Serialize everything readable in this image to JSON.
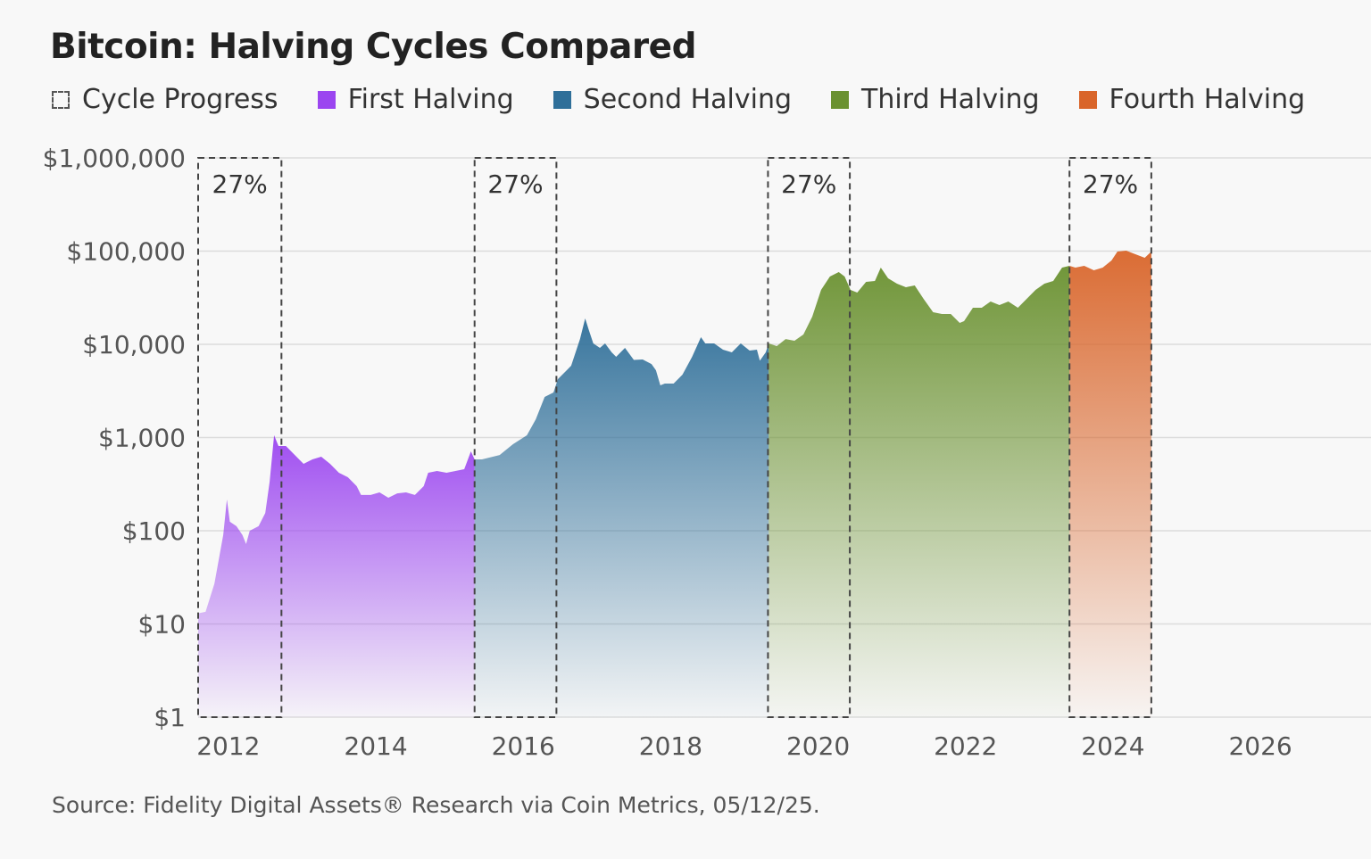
{
  "chart_data": {
    "type": "area",
    "title": "Bitcoin: Halving Cycles Compared",
    "source": "Source: Fidelity Digital Assets® Research via Coin Metrics, 05/12/25.",
    "y_scale": "log",
    "ylim": [
      1,
      1000000
    ],
    "xlim": [
      2011.59,
      2027.5
    ],
    "y_ticks": [
      1,
      10,
      100,
      1000,
      10000,
      100000,
      1000000
    ],
    "y_tick_labels": [
      "$1",
      "$10",
      "$100",
      "$1,000",
      "$10,000",
      "$100,000",
      "$1,000,000"
    ],
    "x_ticks": [
      2012,
      2014,
      2016,
      2018,
      2020,
      2022,
      2024,
      2026
    ],
    "x_tick_labels": [
      "2012",
      "2014",
      "2016",
      "2018",
      "2020",
      "2022",
      "2024",
      "2026"
    ],
    "grid": "horizontal",
    "legend_position": "top-left",
    "legend": [
      {
        "label": "Cycle Progress",
        "style": "dashed-box",
        "color": "#555555"
      },
      {
        "label": "First Halving",
        "color": "#9b45f0"
      },
      {
        "label": "Second Halving",
        "color": "#2f6f99"
      },
      {
        "label": "Third Halving",
        "color": "#6a9130"
      },
      {
        "label": "Fourth Halving",
        "color": "#d9652a"
      }
    ],
    "cycle_progress_windows": [
      {
        "start": 2011.59,
        "end": 2012.72,
        "label": "27%"
      },
      {
        "start": 2015.34,
        "end": 2016.45,
        "label": "27%"
      },
      {
        "start": 2019.32,
        "end": 2020.43,
        "label": "27%"
      },
      {
        "start": 2023.41,
        "end": 2024.52,
        "label": "27%"
      }
    ],
    "series": [
      {
        "name": "First Halving",
        "color": "#9b45f0",
        "points": [
          [
            2011.59,
            13
          ],
          [
            2011.69,
            13.5
          ],
          [
            2011.81,
            27
          ],
          [
            2011.93,
            90
          ],
          [
            2011.98,
            216
          ],
          [
            2012.02,
            125
          ],
          [
            2012.11,
            112
          ],
          [
            2012.19,
            90
          ],
          [
            2012.24,
            72
          ],
          [
            2012.29,
            100
          ],
          [
            2012.41,
            112
          ],
          [
            2012.5,
            155
          ],
          [
            2012.56,
            336
          ],
          [
            2012.62,
            1057
          ],
          [
            2012.68,
            811
          ],
          [
            2012.78,
            811
          ],
          [
            2012.96,
            583
          ],
          [
            2013.02,
            522
          ],
          [
            2013.14,
            583
          ],
          [
            2013.26,
            622
          ],
          [
            2013.38,
            522
          ],
          [
            2013.5,
            419
          ],
          [
            2013.62,
            375
          ],
          [
            2013.74,
            301
          ],
          [
            2013.8,
            242
          ],
          [
            2013.93,
            242
          ],
          [
            2014.05,
            258
          ],
          [
            2014.17,
            226
          ],
          [
            2014.29,
            252
          ],
          [
            2014.41,
            258
          ],
          [
            2014.53,
            242
          ],
          [
            2014.65,
            301
          ],
          [
            2014.71,
            419
          ],
          [
            2014.83,
            438
          ],
          [
            2014.96,
            419
          ],
          [
            2015.08,
            438
          ],
          [
            2015.2,
            457
          ],
          [
            2015.29,
            711
          ],
          [
            2015.34,
            583
          ]
        ]
      },
      {
        "name": "Second Halving",
        "color": "#2f6f99",
        "points": [
          [
            2015.34,
            583
          ],
          [
            2015.44,
            583
          ],
          [
            2015.68,
            650
          ],
          [
            2015.86,
            848
          ],
          [
            2016.05,
            1057
          ],
          [
            2016.17,
            1571
          ],
          [
            2016.29,
            2725
          ],
          [
            2016.41,
            3043
          ],
          [
            2016.47,
            4236
          ],
          [
            2016.53,
            4730
          ],
          [
            2016.65,
            5890
          ],
          [
            2016.77,
            11400
          ],
          [
            2016.84,
            18960
          ],
          [
            2016.89,
            14220
          ],
          [
            2016.95,
            10230
          ],
          [
            2017.04,
            9160
          ],
          [
            2017.11,
            10230
          ],
          [
            2017.2,
            8200
          ],
          [
            2017.26,
            7350
          ],
          [
            2017.38,
            9160
          ],
          [
            2017.5,
            6800
          ],
          [
            2017.62,
            6880
          ],
          [
            2017.74,
            6150
          ],
          [
            2017.8,
            5270
          ],
          [
            2017.86,
            3630
          ],
          [
            2017.92,
            3790
          ],
          [
            2018.04,
            3790
          ],
          [
            2018.16,
            4730
          ],
          [
            2018.29,
            7350
          ],
          [
            2018.41,
            11930
          ],
          [
            2018.47,
            10230
          ],
          [
            2018.59,
            10230
          ],
          [
            2018.71,
            8770
          ],
          [
            2018.83,
            8200
          ],
          [
            2018.95,
            10230
          ],
          [
            2019.07,
            8570
          ],
          [
            2019.17,
            8770
          ],
          [
            2019.21,
            6660
          ],
          [
            2019.29,
            8200
          ],
          [
            2019.33,
            10230
          ]
        ]
      },
      {
        "name": "Third Halving",
        "color": "#6a9130",
        "points": [
          [
            2019.33,
            10230
          ],
          [
            2019.44,
            9570
          ],
          [
            2019.56,
            11400
          ],
          [
            2019.68,
            10920
          ],
          [
            2019.8,
            12740
          ],
          [
            2019.92,
            19800
          ],
          [
            2020.04,
            38370
          ],
          [
            2020.16,
            53350
          ],
          [
            2020.28,
            59570
          ],
          [
            2020.36,
            53350
          ],
          [
            2020.44,
            38370
          ],
          [
            2020.53,
            35890
          ],
          [
            2020.65,
            46770
          ],
          [
            2020.77,
            47780
          ],
          [
            2020.85,
            66530
          ],
          [
            2020.95,
            51070
          ],
          [
            2021.07,
            44760
          ],
          [
            2021.19,
            40930
          ],
          [
            2021.31,
            42850
          ],
          [
            2021.43,
            30770
          ],
          [
            2021.56,
            22090
          ],
          [
            2021.68,
            21140
          ],
          [
            2021.8,
            21140
          ],
          [
            2021.92,
            16980
          ],
          [
            2021.98,
            17740
          ],
          [
            2022.1,
            24670
          ],
          [
            2022.22,
            24670
          ],
          [
            2022.34,
            28780
          ],
          [
            2022.46,
            26370
          ],
          [
            2022.58,
            28780
          ],
          [
            2022.71,
            24670
          ],
          [
            2022.83,
            30770
          ],
          [
            2022.95,
            38370
          ],
          [
            2023.07,
            44760
          ],
          [
            2023.19,
            47780
          ],
          [
            2023.31,
            66530
          ],
          [
            2023.41,
            69500
          ]
        ]
      },
      {
        "name": "Fourth Halving",
        "color": "#d9652a",
        "points": [
          [
            2023.41,
            69500
          ],
          [
            2023.49,
            66530
          ],
          [
            2023.61,
            69500
          ],
          [
            2023.74,
            62200
          ],
          [
            2023.86,
            66530
          ],
          [
            2023.98,
            79400
          ],
          [
            2024.06,
            98900
          ],
          [
            2024.18,
            101200
          ],
          [
            2024.3,
            92700
          ],
          [
            2024.43,
            84800
          ],
          [
            2024.52,
            98900
          ]
        ]
      }
    ]
  }
}
